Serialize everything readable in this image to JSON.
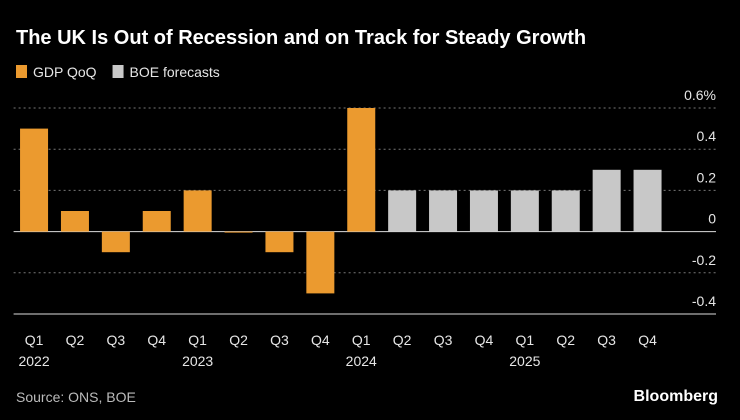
{
  "chart_data": {
    "type": "bar",
    "title": "The UK Is Out of Recession and on Track for Steady Growth",
    "categories": [
      "Q1",
      "Q2",
      "Q3",
      "Q4",
      "Q1",
      "Q2",
      "Q3",
      "Q4",
      "Q1",
      "Q2",
      "Q3",
      "Q4",
      "Q1",
      "Q2",
      "Q3",
      "Q4"
    ],
    "category_years": [
      "2022",
      null,
      null,
      null,
      "2023",
      null,
      null,
      null,
      "2024",
      null,
      null,
      null,
      "2025",
      null,
      null,
      null
    ],
    "series": [
      {
        "name": "GDP QoQ",
        "color": "#eb9a2f",
        "values": [
          0.5,
          0.1,
          -0.1,
          0.1,
          0.2,
          0.0,
          -0.1,
          -0.3,
          0.6,
          null,
          null,
          null,
          null,
          null,
          null,
          null
        ]
      },
      {
        "name": "BOE forecasts",
        "color": "#c8c8c8",
        "values": [
          null,
          null,
          null,
          null,
          null,
          null,
          null,
          null,
          null,
          0.2,
          0.2,
          0.2,
          0.2,
          0.2,
          0.3,
          0.3
        ]
      }
    ],
    "ylim": [
      -0.4,
      0.6
    ],
    "yticks": [
      {
        "value": 0.6,
        "label": "0.6%"
      },
      0.4,
      0.2,
      0,
      -0.2,
      -0.4
    ],
    "grid": true,
    "source": "Source: ONS, BOE",
    "brand": "Bloomberg"
  }
}
